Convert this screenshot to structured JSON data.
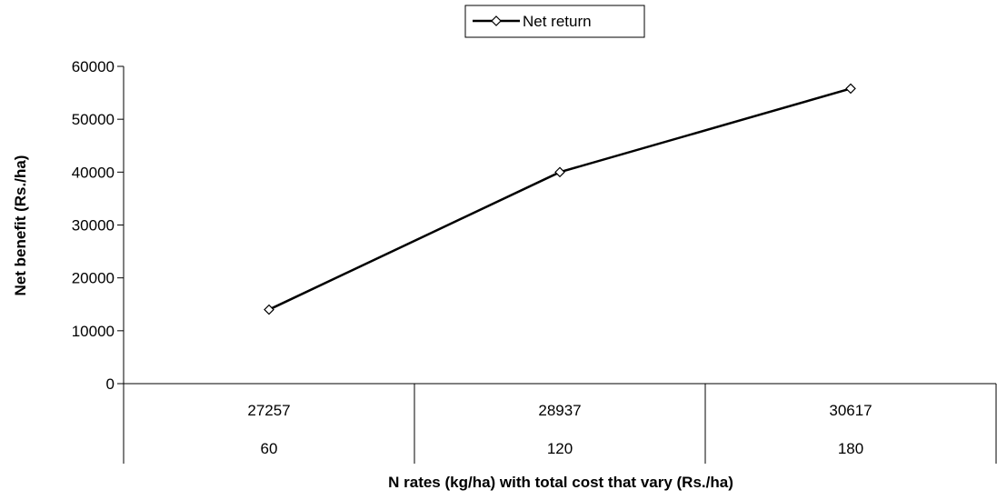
{
  "chart_data": {
    "type": "line",
    "categories": [
      {
        "top": "27257",
        "bottom": "60"
      },
      {
        "top": "28937",
        "bottom": "120"
      },
      {
        "top": "30617",
        "bottom": "180"
      }
    ],
    "series": [
      {
        "name": "Net return",
        "values": [
          14000,
          40000,
          55800
        ],
        "color": "#000000",
        "marker": "diamond"
      }
    ],
    "xlabel": "N rates (kg/ha) with total cost that vary (Rs./ha)",
    "ylabel": "Net benefit (Rs./ha)",
    "ylim": [
      0,
      60000
    ],
    "yticks": [
      "0",
      "10000",
      "20000",
      "30000",
      "40000",
      "50000",
      "60000"
    ],
    "grid": false,
    "legend_position": "top-center"
  }
}
